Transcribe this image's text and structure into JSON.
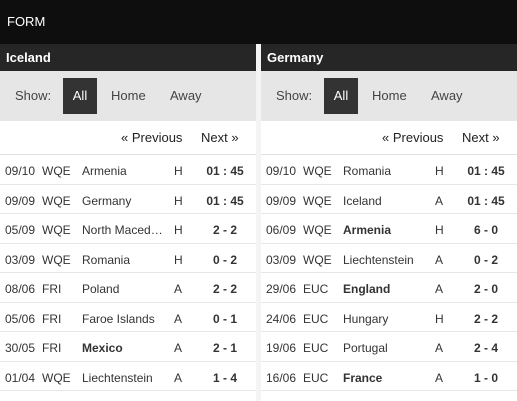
{
  "header": {
    "title": "FORM"
  },
  "filters": {
    "show_label": "Show:",
    "all": "All",
    "home": "Home",
    "away": "Away"
  },
  "pager": {
    "previous": "« Previous",
    "next": "Next »"
  },
  "teams": [
    {
      "name": "Iceland",
      "matches": [
        {
          "date": "09/10",
          "comp": "WQE",
          "opponent": "Armenia",
          "ha": "H",
          "score": "01 : 45",
          "opp_bold": false
        },
        {
          "date": "09/09",
          "comp": "WQE",
          "opponent": "Germany",
          "ha": "H",
          "score": "01 : 45",
          "opp_bold": false
        },
        {
          "date": "05/09",
          "comp": "WQE",
          "opponent": "North Macedonia",
          "ha": "H",
          "score": "2 - 2",
          "opp_bold": false
        },
        {
          "date": "03/09",
          "comp": "WQE",
          "opponent": "Romania",
          "ha": "H",
          "score": "0 - 2",
          "opp_bold": false
        },
        {
          "date": "08/06",
          "comp": "FRI",
          "opponent": "Poland",
          "ha": "A",
          "score": "2 - 2",
          "opp_bold": false
        },
        {
          "date": "05/06",
          "comp": "FRI",
          "opponent": "Faroe Islands",
          "ha": "A",
          "score": "0 - 1",
          "opp_bold": false
        },
        {
          "date": "30/05",
          "comp": "FRI",
          "opponent": "Mexico",
          "ha": "A",
          "score": "2 - 1",
          "opp_bold": true
        },
        {
          "date": "01/04",
          "comp": "WQE",
          "opponent": "Liechtenstein",
          "ha": "A",
          "score": "1 - 4",
          "opp_bold": false
        }
      ]
    },
    {
      "name": "Germany",
      "matches": [
        {
          "date": "09/10",
          "comp": "WQE",
          "opponent": "Romania",
          "ha": "H",
          "score": "01 : 45",
          "opp_bold": false
        },
        {
          "date": "09/09",
          "comp": "WQE",
          "opponent": "Iceland",
          "ha": "A",
          "score": "01 : 45",
          "opp_bold": false
        },
        {
          "date": "06/09",
          "comp": "WQE",
          "opponent": "Armenia",
          "ha": "H",
          "score": "6 - 0",
          "opp_bold": true
        },
        {
          "date": "03/09",
          "comp": "WQE",
          "opponent": "Liechtenstein",
          "ha": "A",
          "score": "0 - 2",
          "opp_bold": false
        },
        {
          "date": "29/06",
          "comp": "EUC",
          "opponent": "England",
          "ha": "A",
          "score": "2 - 0",
          "opp_bold": true
        },
        {
          "date": "24/06",
          "comp": "EUC",
          "opponent": "Hungary",
          "ha": "H",
          "score": "2 - 2",
          "opp_bold": false
        },
        {
          "date": "19/06",
          "comp": "EUC",
          "opponent": "Portugal",
          "ha": "A",
          "score": "2 - 4",
          "opp_bold": false
        },
        {
          "date": "16/06",
          "comp": "EUC",
          "opponent": "France",
          "ha": "A",
          "score": "1 - 0",
          "opp_bold": true
        }
      ]
    }
  ]
}
